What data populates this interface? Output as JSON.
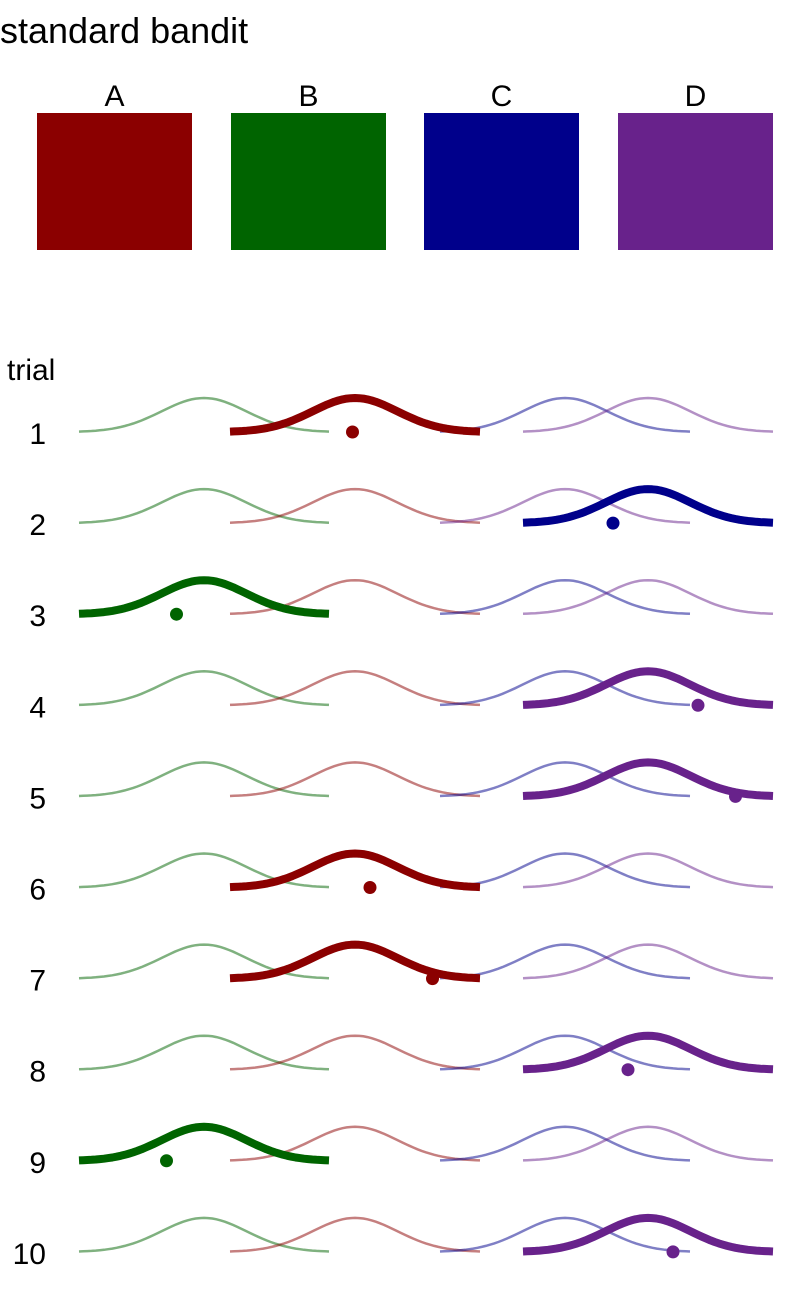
{
  "title": "standard bandit",
  "arms": [
    {
      "label": "A",
      "color": "#8b0000"
    },
    {
      "label": "B",
      "color": "#006400"
    },
    {
      "label": "C",
      "color": "#00008b"
    },
    {
      "label": "D",
      "color": "#68228b"
    }
  ],
  "trial_axis_label": "trial",
  "trials": [
    {
      "number": "1",
      "order": [
        "B",
        "A",
        "C",
        "D"
      ],
      "chosen": "A",
      "outcome": 0.49
    },
    {
      "number": "2",
      "order": [
        "B",
        "A",
        "D",
        "C"
      ],
      "chosen": "C",
      "outcome": 0.36
    },
    {
      "number": "3",
      "order": [
        "B",
        "A",
        "C",
        "D"
      ],
      "chosen": "B",
      "outcome": 0.39
    },
    {
      "number": "4",
      "order": [
        "B",
        "A",
        "C",
        "D"
      ],
      "chosen": "D",
      "outcome": 0.7
    },
    {
      "number": "5",
      "order": [
        "B",
        "A",
        "C",
        "D"
      ],
      "chosen": "D",
      "outcome": 0.85
    },
    {
      "number": "6",
      "order": [
        "B",
        "A",
        "C",
        "D"
      ],
      "chosen": "A",
      "outcome": 0.56
    },
    {
      "number": "7",
      "order": [
        "B",
        "A",
        "C",
        "D"
      ],
      "chosen": "A",
      "outcome": 0.81
    },
    {
      "number": "8",
      "order": [
        "B",
        "A",
        "C",
        "D"
      ],
      "chosen": "D",
      "outcome": 0.42
    },
    {
      "number": "9",
      "order": [
        "B",
        "A",
        "C",
        "D"
      ],
      "chosen": "B",
      "outcome": 0.35
    },
    {
      "number": "10",
      "order": [
        "B",
        "A",
        "C",
        "D"
      ],
      "chosen": "D",
      "outcome": 0.6
    }
  ]
}
